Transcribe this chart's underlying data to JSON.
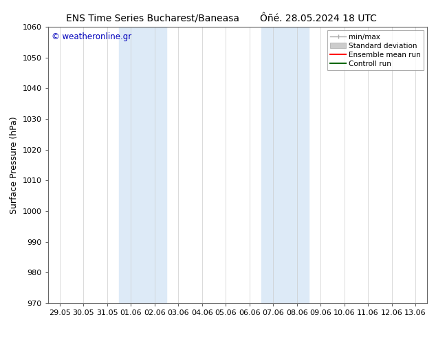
{
  "title_left": "ENS Time Series Bucharest/Baneasa",
  "title_right": "Ôñé. 28.05.2024 18 UTC",
  "ylabel": "Surface Pressure (hPa)",
  "ylim": [
    970,
    1060
  ],
  "yticks": [
    970,
    980,
    990,
    1000,
    1010,
    1020,
    1030,
    1040,
    1050,
    1060
  ],
  "xtick_labels": [
    "29.05",
    "30.05",
    "31.05",
    "01.06",
    "02.06",
    "03.06",
    "04.06",
    "05.06",
    "06.06",
    "07.06",
    "08.06",
    "09.06",
    "10.06",
    "11.06",
    "12.06",
    "13.06"
  ],
  "shaded_regions": [
    {
      "xstart": 3,
      "xend": 5
    },
    {
      "xstart": 9,
      "xend": 11
    }
  ],
  "shaded_color": "#ddeaf7",
  "background_color": "#ffffff",
  "watermark": "© weatheronline.gr",
  "watermark_color": "#0000bb",
  "title_fontsize": 10,
  "ylabel_fontsize": 9,
  "tick_fontsize": 8,
  "legend_fontsize": 7.5
}
